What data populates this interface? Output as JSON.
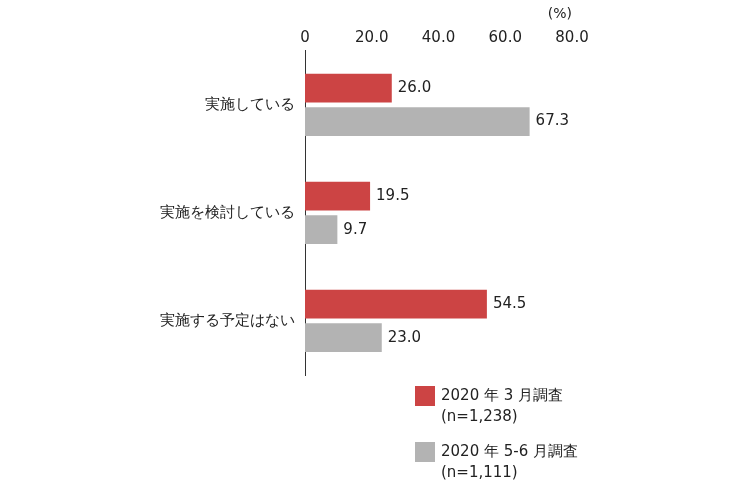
{
  "chart_data": {
    "type": "bar",
    "orientation": "horizontal",
    "x_label": "(%)",
    "categories": [
      "実施している",
      "実施を検討している",
      "実施する予定はない"
    ],
    "series": [
      {
        "name": "2020 年 3 月調査 (n=1,238)",
        "color": "#cc4444",
        "values": [
          26.0,
          19.5,
          54.5
        ],
        "value_labels": [
          "26.0",
          "19.5",
          "54.5"
        ]
      },
      {
        "name": "2020 年 5-6 月調査 (n=1,111)",
        "color": "#b3b3b3",
        "values": [
          67.3,
          9.7,
          23.0
        ],
        "value_labels": [
          "67.3",
          "9.7",
          "23.0"
        ]
      }
    ],
    "xlim": [
      0,
      80
    ],
    "xticks": [
      0,
      {
        "value": 20,
        "label": "20.0"
      },
      {
        "value": 40,
        "label": "40.0"
      },
      {
        "value": 60,
        "label": "60.0"
      },
      {
        "value": 80,
        "label": "80.0"
      }
    ],
    "grid": false,
    "legend": "lower right",
    "data_labels": true
  }
}
